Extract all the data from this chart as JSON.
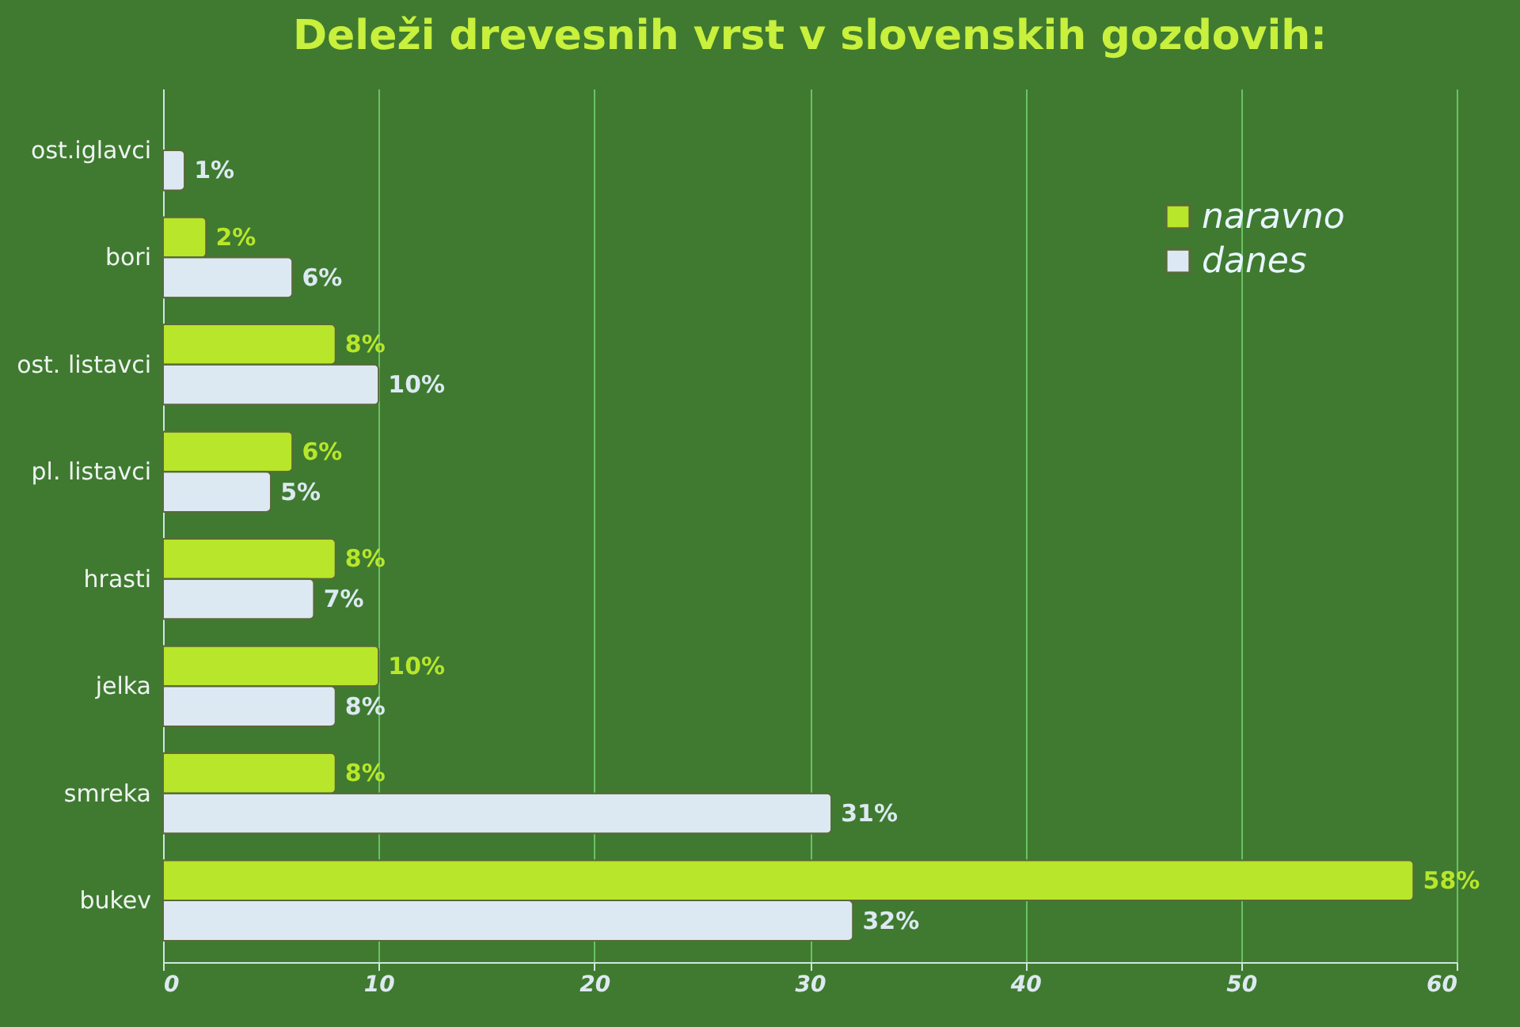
{
  "chart_data": {
    "type": "bar",
    "orientation": "horizontal",
    "title": "Deleži drevesnih vrst v slovenskih gozdovih:",
    "categories": [
      "ost.iglavci",
      "bori",
      "ost. listavci",
      "pl. listavci",
      "hrasti",
      "jelka",
      "smreka",
      "bukev"
    ],
    "series": [
      {
        "name": "naravno",
        "color": "#b8e62a",
        "values": [
          null,
          2,
          8,
          6,
          8,
          10,
          8,
          58
        ],
        "value_labels": [
          null,
          "2%",
          "8%",
          "6%",
          "8%",
          "10%",
          "8%",
          "58%"
        ]
      },
      {
        "name": "danes",
        "color": "#dce9f2",
        "values": [
          1,
          6,
          10,
          5,
          7,
          8,
          31,
          32
        ],
        "value_labels": [
          "1%",
          "6%",
          "10%",
          "5%",
          "7%",
          "8%",
          "31%",
          "32%"
        ]
      }
    ],
    "xlim": [
      0,
      60
    ],
    "xticks": [
      0,
      10,
      20,
      30,
      40,
      50,
      60
    ],
    "grid": "x",
    "legend": "top right"
  }
}
